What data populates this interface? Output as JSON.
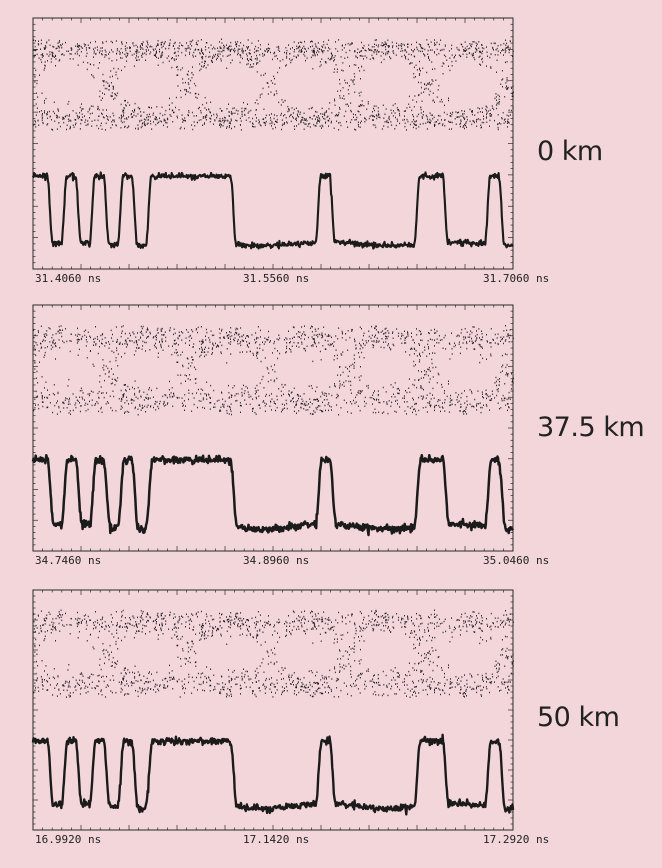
{
  "chart_data": [
    {
      "type": "scatter",
      "label": "0 km",
      "time_unit": "ns",
      "xlim": [
        31.406,
        31.706
      ],
      "x_ticks": [
        "31.4060 ns",
        "31.5560 ns",
        "31.7060 ns"
      ],
      "eye": {
        "noise": 0.45,
        "closure": 0.0
      },
      "bits": [
        1,
        0,
        1,
        0,
        1,
        0,
        1,
        0,
        1,
        1,
        1,
        1,
        1,
        1,
        0,
        0,
        0,
        0,
        0,
        0,
        1,
        0,
        0,
        0,
        0,
        0,
        0,
        1,
        1,
        0,
        0,
        0,
        1,
        0
      ],
      "grid": false
    },
    {
      "type": "scatter",
      "label": "37.5 km",
      "time_unit": "ns",
      "xlim": [
        34.746,
        35.046
      ],
      "x_ticks": [
        "34.7460 ns",
        "34.8960 ns",
        "35.0460 ns"
      ],
      "eye": {
        "noise": 0.75,
        "closure": 0.25
      },
      "bits": [
        1,
        0,
        1,
        0,
        1,
        0,
        1,
        0,
        1,
        1,
        1,
        1,
        1,
        1,
        0,
        0,
        0,
        0,
        0,
        0,
        1,
        0,
        0,
        0,
        0,
        0,
        0,
        1,
        1,
        0,
        0,
        0,
        1,
        0
      ],
      "grid": false
    },
    {
      "type": "scatter",
      "label": "50 km",
      "time_unit": "ns",
      "xlim": [
        16.992,
        17.292
      ],
      "x_ticks": [
        "16.9920 ns",
        "17.1420 ns",
        "17.2920 ns"
      ],
      "eye": {
        "noise": 0.65,
        "closure": 0.2
      },
      "bits": [
        1,
        0,
        1,
        0,
        1,
        0,
        1,
        0,
        1,
        1,
        1,
        1,
        1,
        1,
        0,
        0,
        0,
        0,
        0,
        0,
        1,
        0,
        0,
        0,
        0,
        0,
        0,
        1,
        1,
        0,
        0,
        0,
        1,
        0
      ],
      "grid": false
    }
  ],
  "colors": {
    "background": "#f3d6d9",
    "trace": "#1b1b1b",
    "frame": "#2a2a2a"
  }
}
